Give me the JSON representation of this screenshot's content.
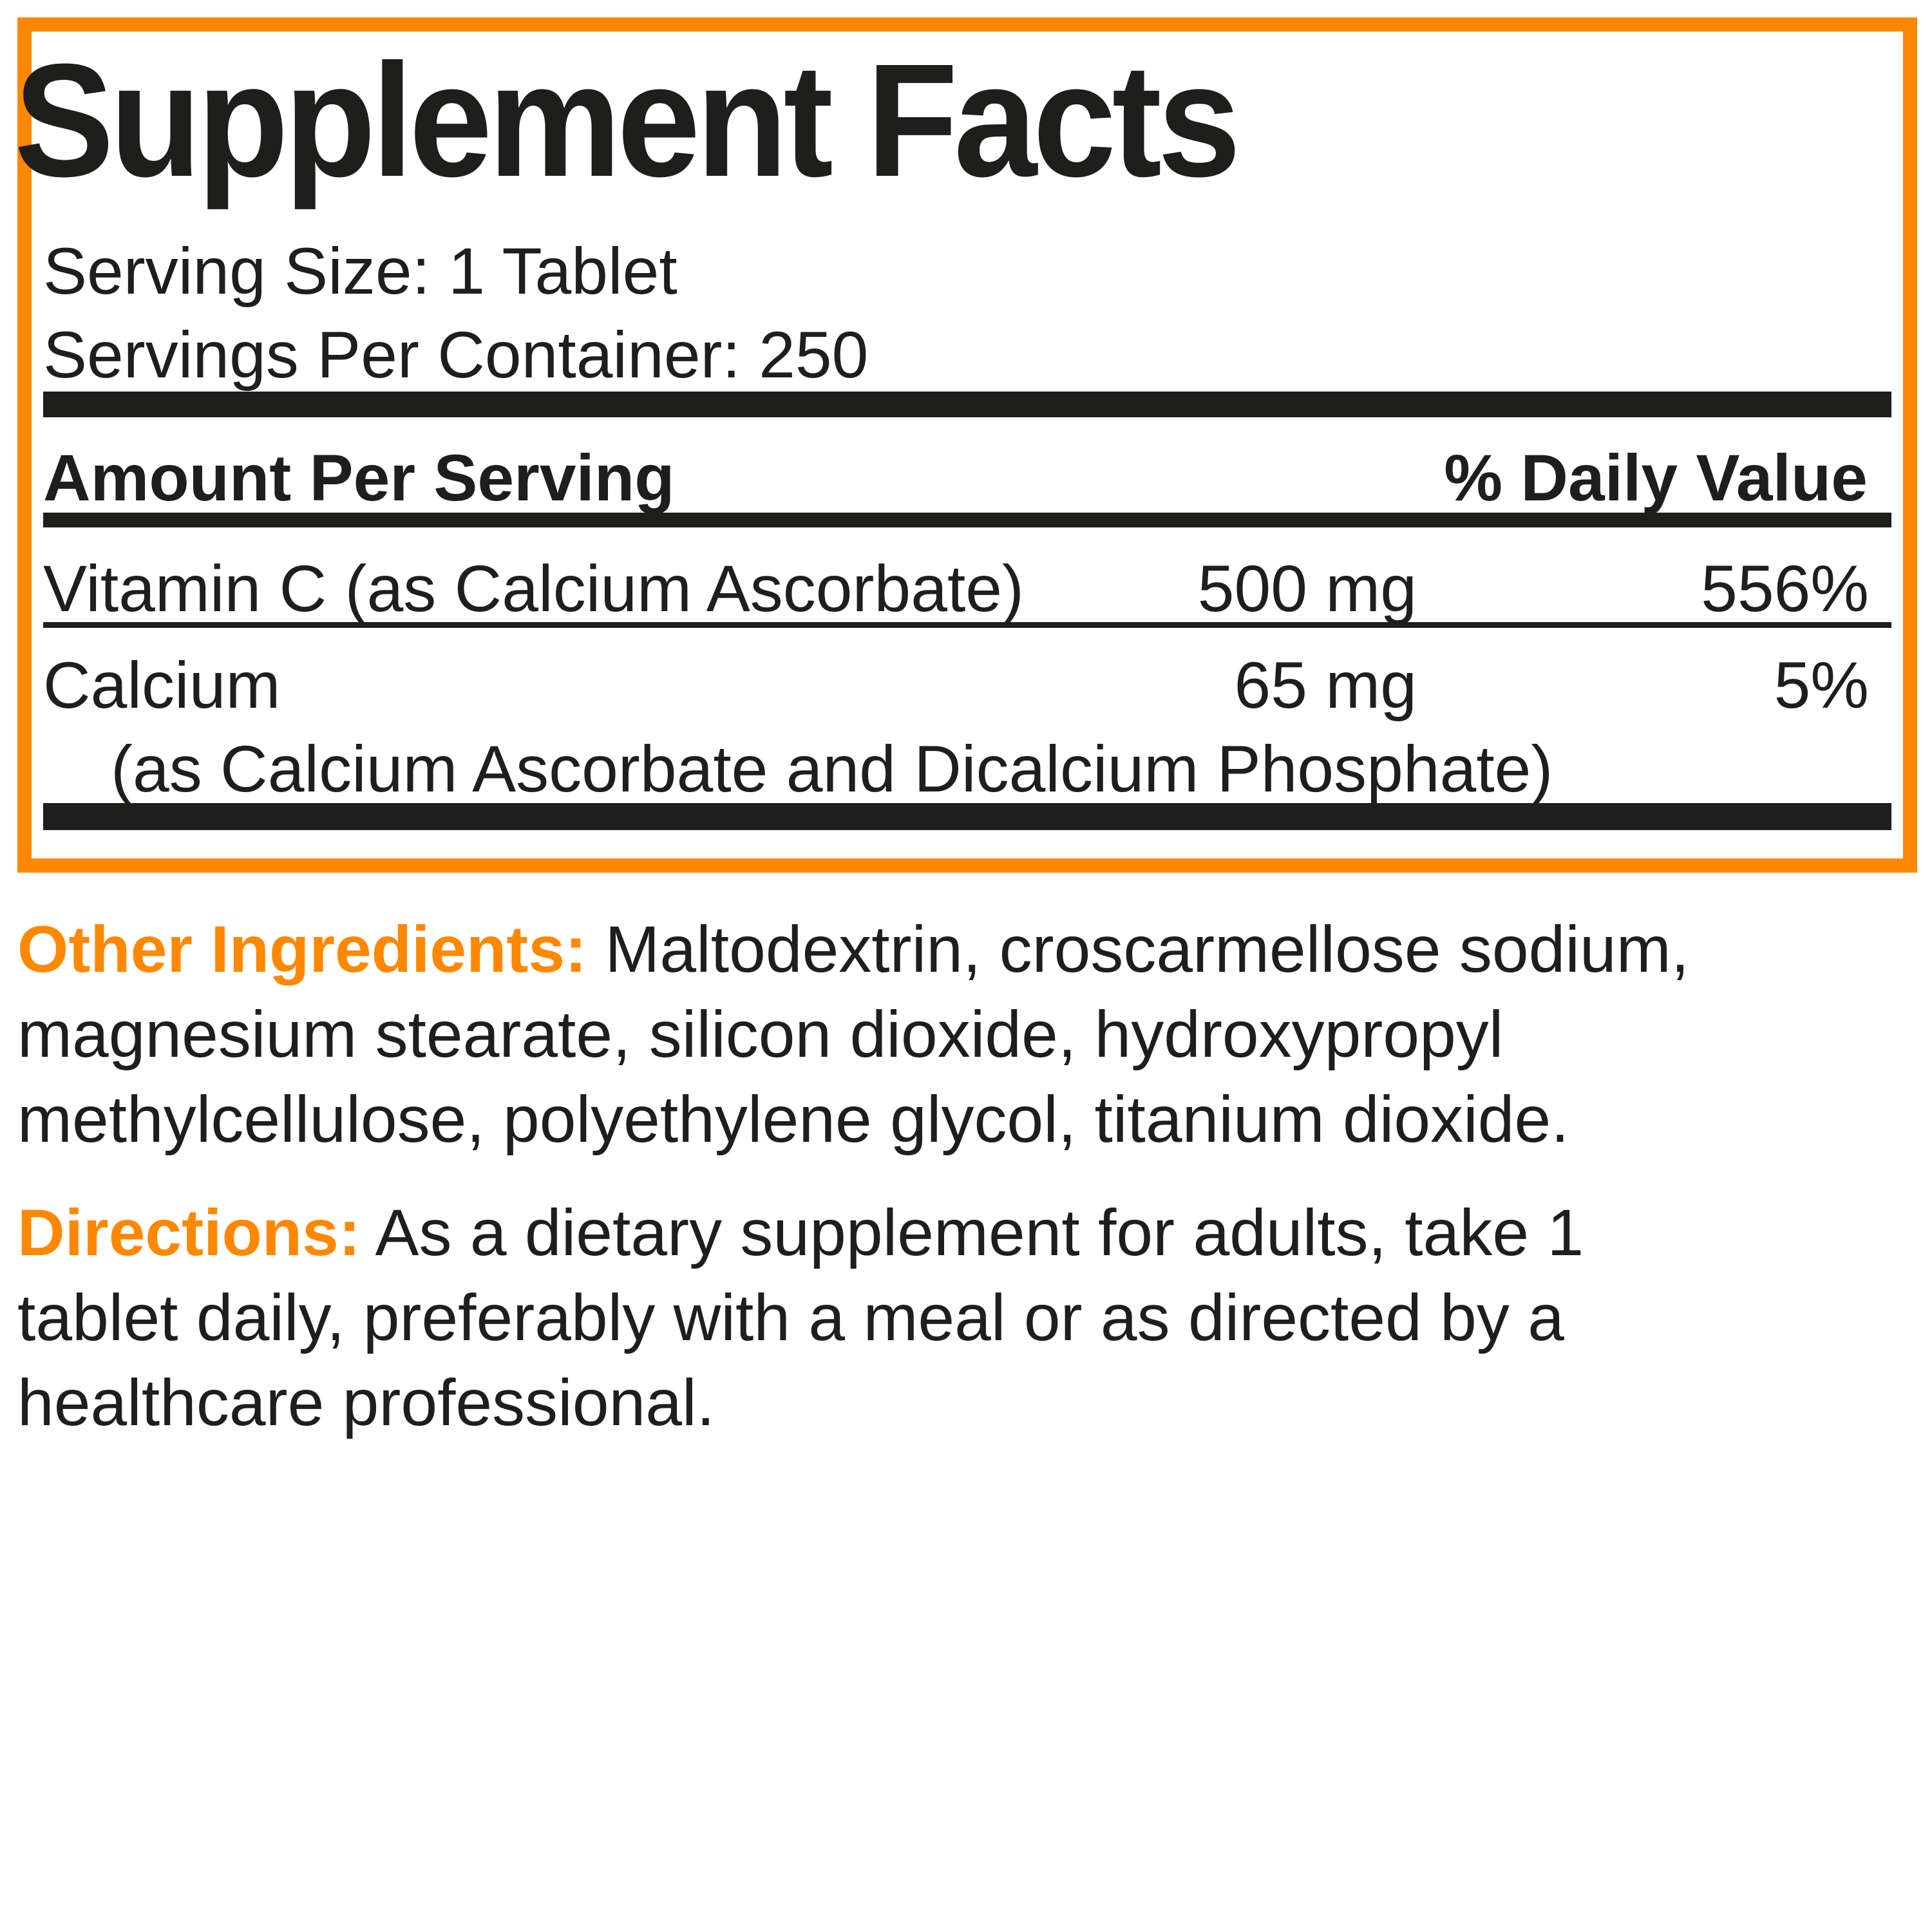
{
  "facts": {
    "title": "Supplement Facts",
    "serving_size": "Serving Size: 1 Tablet",
    "servings_per_container": "Servings Per Container: 250",
    "header_amount": "Amount Per Serving",
    "header_dv": "% Daily Value",
    "rows": [
      {
        "name": "Vitamin C (as Calcium Ascorbate)",
        "amount": "500 mg",
        "dv": "556%"
      },
      {
        "name": "Calcium",
        "amount": "65 mg",
        "dv": "5%",
        "sub": "(as Calcium Ascorbate and Dicalcium Phosphate)"
      }
    ]
  },
  "other_ingredients": {
    "label": "Other Ingredients:",
    "lines": [
      " Maltodextrin, croscarmellose sodium,",
      "magnesium stearate, silicon dioxide, hydroxypropyl",
      "methylcellulose, polyethylene glycol, titanium dioxide."
    ]
  },
  "directions": {
    "label": "Directions:",
    "lines": [
      " As a dietary supplement for adults, take 1",
      "tablet daily, preferably with a meal or as directed by a",
      "healthcare professional."
    ]
  },
  "colors": {
    "accent": "#ff8800",
    "text": "#1e1e1c"
  }
}
